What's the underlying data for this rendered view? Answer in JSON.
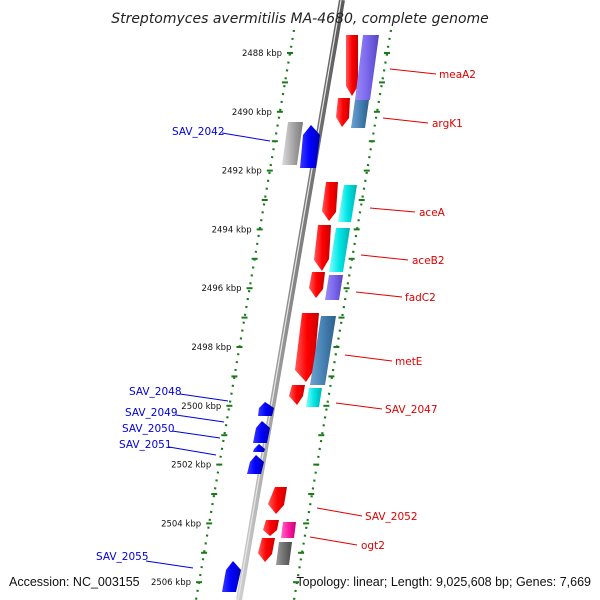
{
  "title": "Streptomyces avermitilis MA-4680, complete genome",
  "accession": "Accession: NC_003155",
  "topology": "Topology: linear; Length: 9,025,608 bp; Genes: 7,669",
  "ticks": [
    "2488 kbp",
    "2490 kbp",
    "2492 kbp",
    "2494 kbp",
    "2496 kbp",
    "2498 kbp",
    "2500 kbp",
    "2502 kbp",
    "2504 kbp",
    "2506 kbp"
  ],
  "colors": {
    "forward": "#ff0000",
    "reverse": "#0000ff",
    "cyan": "#00e5e5",
    "purple": "#7b68ee",
    "steel": "#4682b4",
    "magenta": "#ff1aa0",
    "grey": "#9a9a9a",
    "track_dots": "#1a7a1a"
  },
  "genes_right": [
    {
      "name": "meaA2"
    },
    {
      "name": "argK1"
    },
    {
      "name": "aceA"
    },
    {
      "name": "aceB2"
    },
    {
      "name": "fadC2"
    },
    {
      "name": "metE"
    },
    {
      "name": "SAV_2047"
    },
    {
      "name": "SAV_2052"
    },
    {
      "name": "ogt2"
    }
  ],
  "genes_left": [
    {
      "name": "SAV_2042"
    },
    {
      "name": "SAV_2048"
    },
    {
      "name": "SAV_2049"
    },
    {
      "name": "SAV_2050"
    },
    {
      "name": "SAV_2051"
    },
    {
      "name": "SAV_2055"
    }
  ]
}
